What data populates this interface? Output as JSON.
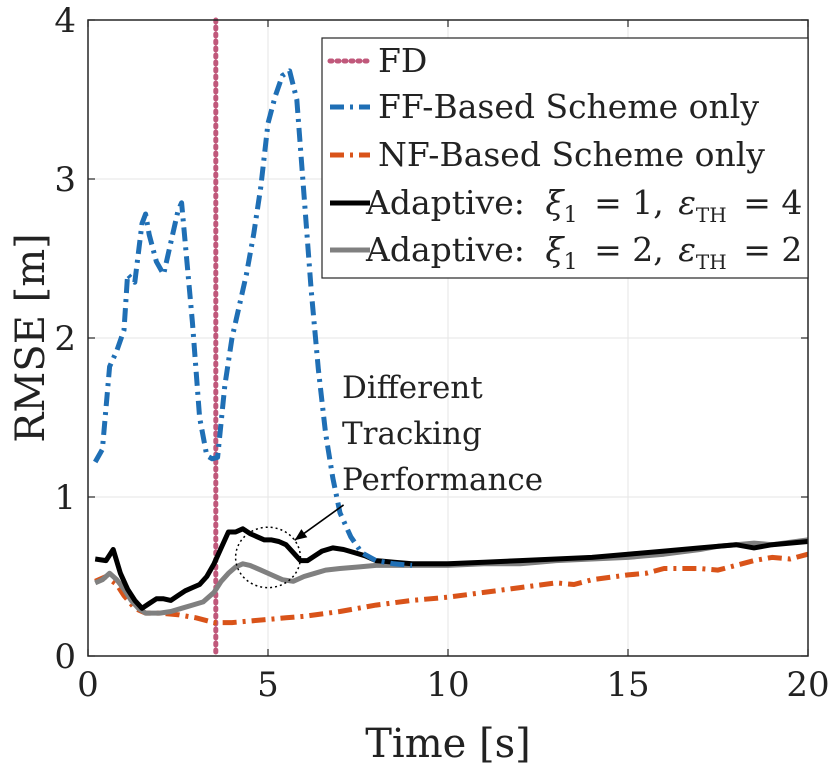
{
  "chart_data": {
    "type": "line",
    "xlabel": "Time [s]",
    "ylabel": "RMSE [m]",
    "xlim": [
      0,
      20
    ],
    "ylim": [
      0,
      4
    ],
    "xticks": [
      0,
      5,
      10,
      15,
      20
    ],
    "yticks": [
      0,
      1,
      2,
      3,
      4
    ],
    "grid": true,
    "legend_position": "top-right",
    "fd_marker": {
      "label": "FD",
      "x": 3.55,
      "color": "#c0587b",
      "style": "dotted"
    },
    "series": [
      {
        "name": "FF-Based Scheme only",
        "color": "#1f6fb5",
        "style": "dashdot",
        "x": [
          0.2,
          0.4,
          0.6,
          0.8,
          1.0,
          1.1,
          1.3,
          1.5,
          1.6,
          1.7,
          1.9,
          2.1,
          2.3,
          2.5,
          2.6,
          2.7,
          2.9,
          3.1,
          3.3,
          3.45,
          3.6,
          3.8,
          4.0,
          4.2,
          4.4,
          4.6,
          4.8,
          5.0,
          5.2,
          5.4,
          5.6,
          5.8,
          6.0,
          6.2,
          6.4,
          6.6,
          6.8,
          7.0,
          7.3,
          7.6,
          8.0,
          8.5,
          9.0
        ],
        "y": [
          1.22,
          1.3,
          1.82,
          1.92,
          2.05,
          2.4,
          2.35,
          2.72,
          2.78,
          2.65,
          2.48,
          2.4,
          2.6,
          2.8,
          2.85,
          2.6,
          2.1,
          1.5,
          1.26,
          1.24,
          1.25,
          1.7,
          2.0,
          2.2,
          2.4,
          2.65,
          2.95,
          3.35,
          3.52,
          3.65,
          3.68,
          3.5,
          2.9,
          2.3,
          1.8,
          1.4,
          1.12,
          0.9,
          0.75,
          0.65,
          0.6,
          0.58,
          0.57
        ]
      },
      {
        "name": "NF-Based Scheme only",
        "color": "#d95319",
        "style": "dashdot",
        "x": [
          0.2,
          0.5,
          0.8,
          1.0,
          1.3,
          1.6,
          2.0,
          2.5,
          3.0,
          3.5,
          4.0,
          4.5,
          5.0,
          5.5,
          6.0,
          7.0,
          8.0,
          9.0,
          10.0,
          11.0,
          12.0,
          13.0,
          13.5,
          14.0,
          15.0,
          15.5,
          16.0,
          17.0,
          17.5,
          18.0,
          18.5,
          19.0,
          19.5,
          20.0
        ],
        "y": [
          0.47,
          0.5,
          0.45,
          0.38,
          0.3,
          0.27,
          0.27,
          0.26,
          0.24,
          0.21,
          0.21,
          0.22,
          0.23,
          0.24,
          0.25,
          0.28,
          0.32,
          0.35,
          0.37,
          0.4,
          0.43,
          0.46,
          0.45,
          0.48,
          0.51,
          0.52,
          0.55,
          0.55,
          0.54,
          0.57,
          0.6,
          0.62,
          0.61,
          0.64
        ]
      },
      {
        "name": "Adaptive: ξ1 = 1, εTH = 4",
        "color": "#000000",
        "style": "solid",
        "x": [
          0.2,
          0.5,
          0.7,
          0.9,
          1.1,
          1.3,
          1.5,
          1.7,
          1.9,
          2.1,
          2.3,
          2.5,
          2.7,
          2.9,
          3.1,
          3.3,
          3.5,
          3.7,
          3.9,
          4.1,
          4.3,
          4.5,
          4.7,
          4.9,
          5.1,
          5.3,
          5.5,
          5.7,
          5.9,
          6.1,
          6.3,
          6.5,
          6.8,
          7.1,
          7.4,
          7.7,
          8.0,
          8.5,
          9.0,
          10.0,
          11.0,
          12.0,
          13.0,
          14.0,
          15.0,
          16.0,
          17.0,
          18.0,
          18.5,
          19.0,
          20.0
        ],
        "y": [
          0.61,
          0.6,
          0.67,
          0.52,
          0.42,
          0.35,
          0.3,
          0.33,
          0.36,
          0.36,
          0.35,
          0.38,
          0.41,
          0.43,
          0.45,
          0.5,
          0.58,
          0.68,
          0.78,
          0.78,
          0.8,
          0.77,
          0.75,
          0.73,
          0.73,
          0.72,
          0.7,
          0.65,
          0.6,
          0.6,
          0.63,
          0.66,
          0.68,
          0.67,
          0.65,
          0.63,
          0.6,
          0.59,
          0.58,
          0.58,
          0.59,
          0.6,
          0.61,
          0.62,
          0.64,
          0.66,
          0.68,
          0.7,
          0.68,
          0.7,
          0.72
        ]
      },
      {
        "name": "Adaptive: ξ1 = 2, εTH = 2",
        "color": "#808080",
        "style": "solid",
        "x": [
          0.2,
          0.4,
          0.6,
          0.8,
          1.0,
          1.2,
          1.4,
          1.6,
          1.8,
          2.0,
          2.3,
          2.6,
          2.9,
          3.2,
          3.5,
          3.7,
          3.9,
          4.1,
          4.3,
          4.5,
          4.8,
          5.1,
          5.4,
          5.7,
          6.0,
          6.3,
          6.6,
          7.0,
          7.5,
          8.0,
          8.5,
          9.0,
          10.0,
          11.0,
          12.0,
          12.5,
          13.0,
          14.0,
          15.0,
          15.5,
          16.0,
          17.0,
          17.5,
          18.0,
          18.5,
          19.0,
          20.0
        ],
        "y": [
          0.46,
          0.48,
          0.52,
          0.48,
          0.42,
          0.35,
          0.3,
          0.27,
          0.27,
          0.27,
          0.28,
          0.3,
          0.32,
          0.34,
          0.4,
          0.47,
          0.52,
          0.56,
          0.58,
          0.57,
          0.54,
          0.51,
          0.48,
          0.47,
          0.5,
          0.52,
          0.54,
          0.55,
          0.56,
          0.57,
          0.57,
          0.57,
          0.57,
          0.58,
          0.58,
          0.59,
          0.6,
          0.61,
          0.62,
          0.63,
          0.64,
          0.67,
          0.69,
          0.7,
          0.71,
          0.7,
          0.73
        ]
      }
    ],
    "annotation": {
      "lines": [
        "Different",
        "Tracking",
        "Performance"
      ],
      "target": {
        "x": 5.0,
        "y": 0.62,
        "rx_data": 0.9,
        "ry_data": 0.19
      },
      "arrow_from": {
        "x": 7.1,
        "y": 0.95
      }
    }
  },
  "legend": {
    "fd": "FD",
    "ff": "FF-Based Scheme only",
    "nf": "NF-Based Scheme only",
    "adaptive1": {
      "prefix": "Adaptive:",
      "xi_sub": "1",
      "xi_val": "= 1,",
      "eps_sub": "TH",
      "eps_val": "= 4"
    },
    "adaptive2": {
      "prefix": "Adaptive:",
      "xi_sub": "1",
      "xi_val": "= 2,",
      "eps_sub": "TH",
      "eps_val": "= 2"
    }
  }
}
